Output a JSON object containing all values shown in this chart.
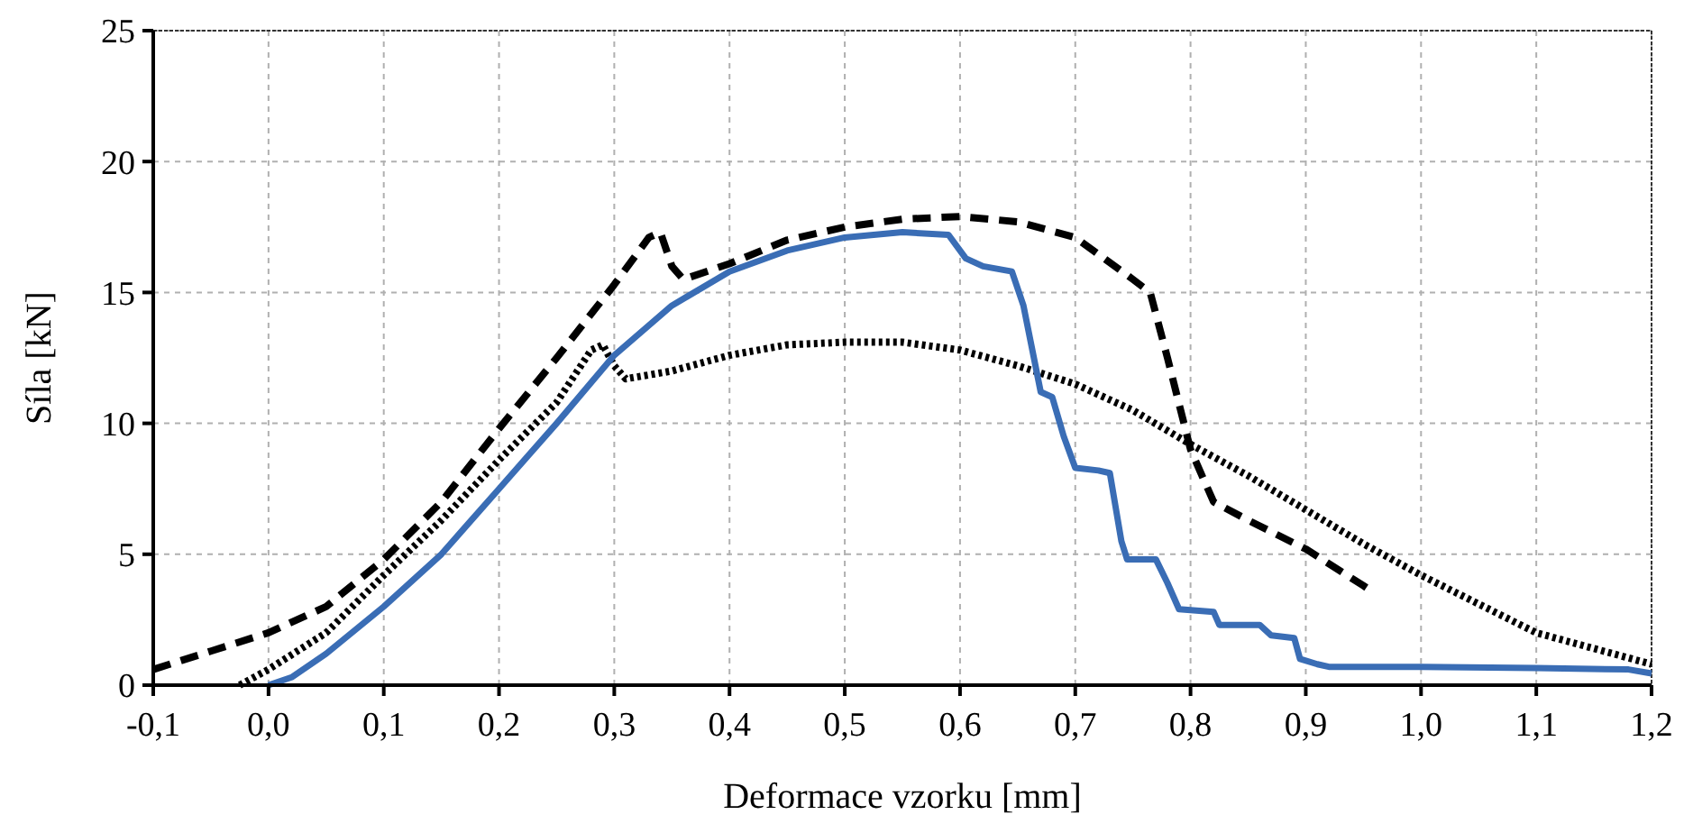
{
  "chart_data": {
    "type": "line",
    "xlabel": "Deformace vzorku [mm]",
    "ylabel": "Síla [kN]",
    "xlim": [
      -0.1,
      1.2
    ],
    "ylim": [
      0,
      25
    ],
    "xticks": [
      {
        "value": -0.1,
        "label": "-0,1"
      },
      {
        "value": 0,
        "label": "0,0"
      },
      {
        "value": 0.1,
        "label": "0,1"
      },
      {
        "value": 0.2,
        "label": "0,2"
      },
      {
        "value": 0.3,
        "label": "0,3"
      },
      {
        "value": 0.4,
        "label": "0,4"
      },
      {
        "value": 0.5,
        "label": "0,5"
      },
      {
        "value": 0.6,
        "label": "0,6"
      },
      {
        "value": 0.7,
        "label": "0,7"
      },
      {
        "value": 0.8,
        "label": "0,8"
      },
      {
        "value": 0.9,
        "label": "0,9"
      },
      {
        "value": 1.0,
        "label": "1,0"
      },
      {
        "value": 1.1,
        "label": "1,1"
      },
      {
        "value": 1.2,
        "label": "1,2"
      }
    ],
    "yticks": [
      0,
      5,
      10,
      15,
      20,
      25
    ],
    "grid": true,
    "marker": "none",
    "series": [
      {
        "color": "#000000",
        "line_style": "dotted",
        "x": [
          -0.025,
          0,
          0.05,
          0.1,
          0.15,
          0.2,
          0.25,
          0.28,
          0.29,
          0.3,
          0.31,
          0.35,
          0.4,
          0.45,
          0.5,
          0.55,
          0.6,
          0.65,
          0.7,
          0.75,
          0.8,
          0.85,
          0.9,
          0.95,
          1.0,
          1.05,
          1.1,
          1.15,
          1.2
        ],
        "values": [
          0,
          0.6,
          2.0,
          4.2,
          6.3,
          8.6,
          10.8,
          12.8,
          13.0,
          12.2,
          11.7,
          12.0,
          12.6,
          13.0,
          13.1,
          13.1,
          12.8,
          12.2,
          11.5,
          10.5,
          9.2,
          8.0,
          6.7,
          5.4,
          4.2,
          3.1,
          2.0,
          1.4,
          0.8
        ]
      },
      {
        "color": "#000000",
        "line_style": "dashed",
        "x": [
          -0.1,
          -0.05,
          0,
          0.05,
          0.1,
          0.15,
          0.2,
          0.25,
          0.3,
          0.33,
          0.34,
          0.35,
          0.36,
          0.4,
          0.45,
          0.5,
          0.55,
          0.6,
          0.65,
          0.7,
          0.75,
          0.765,
          0.78,
          0.8,
          0.82,
          0.85,
          0.9,
          0.95,
          0.96
        ],
        "values": [
          0.6,
          1.3,
          2.0,
          3.0,
          4.8,
          7.0,
          9.8,
          12.5,
          15.3,
          17.1,
          17.3,
          16.0,
          15.5,
          16.1,
          17.0,
          17.5,
          17.8,
          17.9,
          17.7,
          17.1,
          15.5,
          15.0,
          12.5,
          9.0,
          7.0,
          6.3,
          5.2,
          3.8,
          3.5
        ]
      },
      {
        "color": "#3a6db5",
        "line_style": "solid",
        "x": [
          0,
          0.02,
          0.05,
          0.1,
          0.15,
          0.2,
          0.25,
          0.3,
          0.35,
          0.4,
          0.45,
          0.5,
          0.55,
          0.59,
          0.605,
          0.62,
          0.645,
          0.655,
          0.67,
          0.68,
          0.69,
          0.7,
          0.72,
          0.73,
          0.74,
          0.745,
          0.77,
          0.78,
          0.79,
          0.82,
          0.825,
          0.86,
          0.87,
          0.89,
          0.895,
          0.91,
          0.92,
          1.0,
          1.1,
          1.18,
          1.2
        ],
        "values": [
          0,
          0.3,
          1.2,
          3.0,
          5.0,
          7.5,
          10,
          12.6,
          14.5,
          15.8,
          16.6,
          17.1,
          17.3,
          17.2,
          16.3,
          16.0,
          15.8,
          14.5,
          11.2,
          11.0,
          9.5,
          8.3,
          8.2,
          8.1,
          5.5,
          4.8,
          4.8,
          3.9,
          2.9,
          2.8,
          2.3,
          2.3,
          1.9,
          1.8,
          1.0,
          0.8,
          0.7,
          0.7,
          0.65,
          0.6,
          0.45
        ]
      }
    ]
  }
}
